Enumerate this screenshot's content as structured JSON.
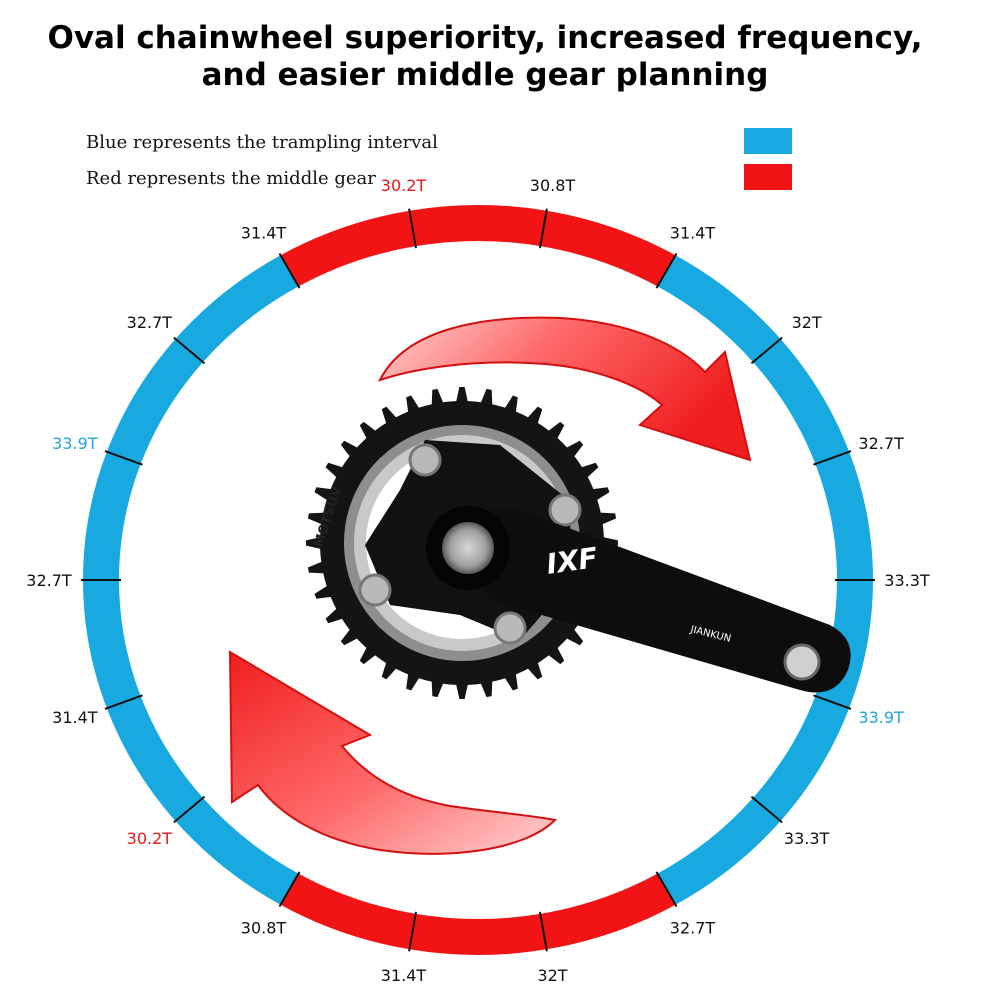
{
  "title": {
    "line1": "Oval chainwheel superiority, increased frequency,",
    "line2": "and easier middle gear planning"
  },
  "legend": {
    "blue_label": "Blue represents the trampling interval",
    "red_label": "Red represents the middle gear",
    "blue_color": "#19a9e1",
    "red_color": "#f21414"
  },
  "ring": {
    "labels": [
      {
        "text": "30.2T",
        "color": "red"
      },
      {
        "text": "30.8T",
        "color": "black"
      },
      {
        "text": "31.4T",
        "color": "black"
      },
      {
        "text": "32T",
        "color": "black"
      },
      {
        "text": "32.7T",
        "color": "black"
      },
      {
        "text": "33.3T",
        "color": "black"
      },
      {
        "text": "33.9T",
        "color": "blue"
      },
      {
        "text": "33.3T",
        "color": "black"
      },
      {
        "text": "32.7T",
        "color": "black"
      },
      {
        "text": "32T",
        "color": "black"
      },
      {
        "text": "31.4T",
        "color": "black"
      },
      {
        "text": "30.8T",
        "color": "black"
      },
      {
        "text": "30.2T",
        "color": "red"
      },
      {
        "text": "31.4T",
        "color": "black"
      },
      {
        "text": "32.7T",
        "color": "black"
      },
      {
        "text": "33.9T",
        "color": "blue"
      },
      {
        "text": "32.7T",
        "color": "black"
      },
      {
        "text": "31.4T",
        "color": "black"
      }
    ]
  },
  "crank": {
    "brand": "IXF",
    "model": "JIANKUN",
    "ring_text": "MOTSUV"
  }
}
